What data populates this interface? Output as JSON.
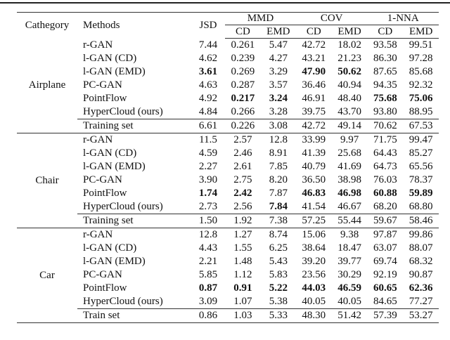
{
  "header": {
    "category": "Cathegory",
    "methods": "Methods",
    "jsd": "JSD",
    "groups": [
      "MMD",
      "COV",
      "1-NNA"
    ],
    "sub": [
      "CD",
      "EMD",
      "CD",
      "EMD",
      "CD",
      "EMD"
    ]
  },
  "sections": [
    {
      "category": "Airplane",
      "rows": [
        {
          "method": "r-GAN",
          "values": [
            "7.44",
            "0.261",
            "5.47",
            "42.72",
            "18.02",
            "93.58",
            "99.51"
          ],
          "bold": []
        },
        {
          "method": "l-GAN (CD)",
          "values": [
            "4.62",
            "0.239",
            "4.27",
            "43.21",
            "21.23",
            "86.30",
            "97.28"
          ],
          "bold": []
        },
        {
          "method": "l-GAN (EMD)",
          "values": [
            "3.61",
            "0.269",
            "3.29",
            "47.90",
            "50.62",
            "87.65",
            "85.68"
          ],
          "bold": [
            0,
            3,
            4
          ]
        },
        {
          "method": "PC-GAN",
          "values": [
            "4.63",
            "0.287",
            "3.57",
            "36.46",
            "40.94",
            "94.35",
            "92.32"
          ],
          "bold": []
        },
        {
          "method": "PointFlow",
          "values": [
            "4.92",
            "0.217",
            "3.24",
            "46.91",
            "48.40",
            "75.68",
            "75.06"
          ],
          "bold": [
            1,
            2,
            5,
            6
          ]
        },
        {
          "method": "HyperCloud (ours)",
          "values": [
            "4.84",
            "0.266",
            "3.28",
            "39.75",
            "43.70",
            "93.80",
            "88.95"
          ],
          "bold": []
        },
        {
          "method": "Training set",
          "values": [
            "6.61",
            "0.226",
            "3.08",
            "42.72",
            "49.14",
            "70.62",
            "67.53"
          ],
          "bold": []
        }
      ]
    },
    {
      "category": "Chair",
      "rows": [
        {
          "method": "r-GAN",
          "values": [
            "11.5",
            "2.57",
            "12.8",
            "33.99",
            "9.97",
            "71.75",
            "99.47"
          ],
          "bold": []
        },
        {
          "method": "l-GAN (CD)",
          "values": [
            "4.59",
            "2.46",
            "8.91",
            "41.39",
            "25.68",
            "64.43",
            "85.27"
          ],
          "bold": []
        },
        {
          "method": "l-GAN (EMD)",
          "values": [
            "2.27",
            "2.61",
            "7.85",
            "40.79",
            "41.69",
            "64.73",
            "65.56"
          ],
          "bold": []
        },
        {
          "method": "PC-GAN",
          "values": [
            "3.90",
            "2.75",
            "8.20",
            "36.50",
            "38.98",
            "76.03",
            "78.37"
          ],
          "bold": []
        },
        {
          "method": "PointFlow",
          "values": [
            "1.74",
            "2.42",
            "7.87",
            "46.83",
            "46.98",
            "60.88",
            "59.89"
          ],
          "bold": [
            0,
            1,
            3,
            4,
            5,
            6
          ]
        },
        {
          "method": "HyperCloud (ours)",
          "values": [
            "2.73",
            "2.56",
            "7.84",
            "41.54",
            "46.67",
            "68.20",
            "68.80"
          ],
          "bold": [
            2
          ]
        },
        {
          "method": "Training set",
          "values": [
            "1.50",
            "1.92",
            "7.38",
            "57.25",
            "55.44",
            "59.67",
            "58.46"
          ],
          "bold": []
        }
      ]
    },
    {
      "category": "Car",
      "rows": [
        {
          "method": "r-GAN",
          "values": [
            "12.8",
            "1.27",
            "8.74",
            "15.06",
            "9.38",
            "97.87",
            "99.86"
          ],
          "bold": []
        },
        {
          "method": "l-GAN (CD)",
          "values": [
            "4.43",
            "1.55",
            "6.25",
            "38.64",
            "18.47",
            "63.07",
            "88.07"
          ],
          "bold": []
        },
        {
          "method": "l-GAN (EMD)",
          "values": [
            "2.21",
            "1.48",
            "5.43",
            "39.20",
            "39.77",
            "69.74",
            "68.32"
          ],
          "bold": []
        },
        {
          "method": "PC-GAN",
          "values": [
            "5.85",
            "1.12",
            "5.83",
            "23.56",
            "30.29",
            "92.19",
            "90.87"
          ],
          "bold": []
        },
        {
          "method": "PointFlow",
          "values": [
            "0.87",
            "0.91",
            "5.22",
            "44.03",
            "46.59",
            "60.65",
            "62.36"
          ],
          "bold": [
            0,
            1,
            2,
            3,
            4,
            5,
            6
          ]
        },
        {
          "method": "HyperCloud (ours)",
          "values": [
            "3.09",
            "1.07",
            "5.38",
            "40.05",
            "40.05",
            "84.65",
            "77.27"
          ],
          "bold": []
        },
        {
          "method": "Train set",
          "values": [
            "0.86",
            "1.03",
            "5.33",
            "48.30",
            "51.42",
            "57.39",
            "53.27"
          ],
          "bold": []
        }
      ]
    }
  ]
}
